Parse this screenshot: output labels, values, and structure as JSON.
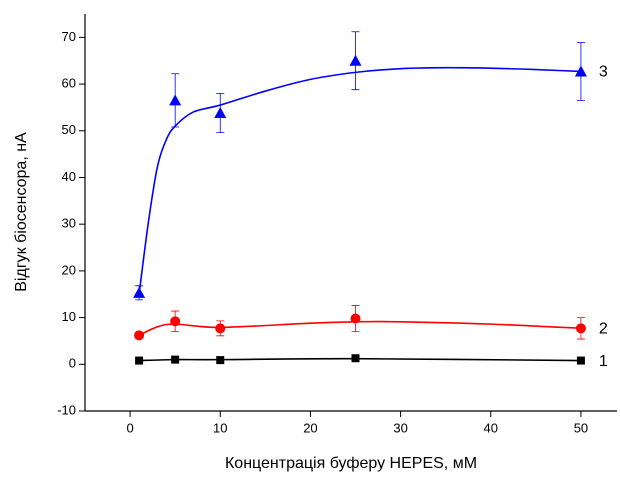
{
  "chart_data": {
    "type": "scatter",
    "x_label": "Концентрація буферу HEPES, мМ",
    "y_label": "Відгук біосенсора, нА",
    "xlim": [
      -5,
      54
    ],
    "ylim": [
      -10,
      75
    ],
    "xticks": [
      0,
      10,
      20,
      30,
      40,
      50
    ],
    "yticks": [
      -10,
      0,
      10,
      20,
      30,
      40,
      50,
      60,
      70
    ],
    "series": [
      {
        "name": "1",
        "color": "#000000",
        "marker": "square",
        "x": [
          1,
          5,
          10,
          25,
          50
        ],
        "values": [
          0.8,
          1.0,
          0.9,
          1.3,
          0.8
        ],
        "fit": {
          "x": [
            1,
            5,
            10,
            25,
            50
          ],
          "values": [
            0.8,
            1.0,
            1.0,
            1.2,
            0.8
          ]
        }
      },
      {
        "name": "2",
        "color": "#ff0000",
        "marker": "circle",
        "x": [
          1,
          5,
          10,
          25,
          50
        ],
        "values": [
          6.2,
          9.2,
          7.7,
          9.8,
          7.7
        ],
        "errors": [
          0.5,
          2.2,
          1.6,
          2.8,
          2.3
        ],
        "fit": {
          "x": [
            1,
            3,
            5,
            10,
            20,
            25,
            30,
            40,
            50
          ],
          "values": [
            6.2,
            8.0,
            8.6,
            7.9,
            8.8,
            9.1,
            9.1,
            8.6,
            7.7
          ]
        }
      },
      {
        "name": "3",
        "color": "#0000ff",
        "marker": "triangle",
        "x": [
          1,
          5,
          10,
          25,
          50
        ],
        "values": [
          15.3,
          56.5,
          53.8,
          65.0,
          62.7
        ],
        "errors": [
          1.5,
          5.7,
          4.2,
          6.2,
          6.2
        ],
        "fit": {
          "x": [
            1,
            2,
            3,
            4,
            5,
            7,
            10,
            15,
            20,
            25,
            30,
            35,
            40,
            45,
            50
          ],
          "values": [
            15,
            30,
            42,
            48,
            51,
            54,
            55.5,
            58.5,
            61,
            62.5,
            63.3,
            63.5,
            63.4,
            63.1,
            62.7
          ]
        }
      }
    ]
  }
}
